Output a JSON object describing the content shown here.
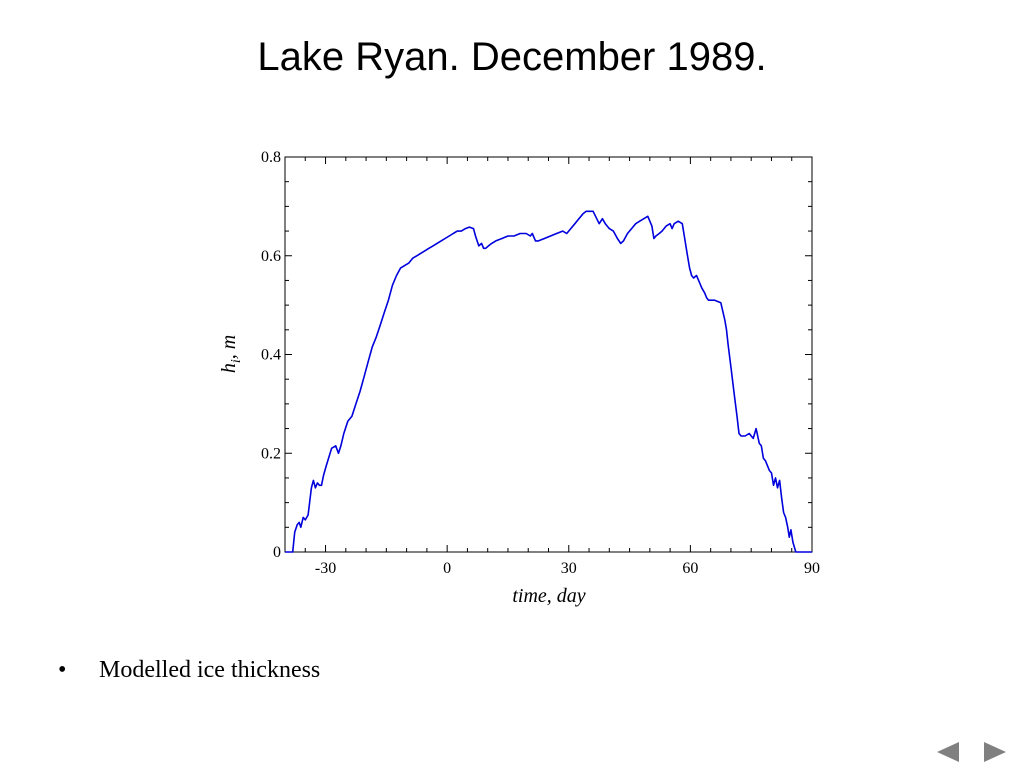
{
  "slide": {
    "title": "Lake Ryan. December 1989.",
    "bullets": [
      {
        "marker": "•",
        "text": "Modelled ice thickness"
      }
    ]
  },
  "navigation": {
    "prev_icon": "triangle-left-icon",
    "next_icon": "triangle-right-icon",
    "icon_color": "#808080"
  },
  "chart_data": {
    "type": "line",
    "xlabel": "time, day",
    "ylabel": {
      "base": "h",
      "subscript": "i",
      "suffix": ", m"
    },
    "xlim": [
      -40,
      90
    ],
    "ylim": [
      0,
      0.8
    ],
    "xticks": [
      -30,
      0,
      30,
      60,
      90
    ],
    "xtick_labels": [
      "-30",
      "0",
      "30",
      "60",
      "90"
    ],
    "yticks": [
      0,
      0.2,
      0.4,
      0.6,
      0.8
    ],
    "ytick_labels": [
      "0",
      "0.2",
      "0.4",
      "0.6",
      "0.8"
    ],
    "grid": false,
    "series": [
      {
        "color": "#0000dd",
        "x": [
          -40,
          -38.1,
          -37.6,
          -37.0,
          -36.5,
          -36.1,
          -35.5,
          -35.0,
          -34.3,
          -33.5,
          -33.0,
          -32.5,
          -32.0,
          -31.5,
          -31.0,
          -30.5,
          -29.8,
          -28.5,
          -27.5,
          -26.8,
          -26.2,
          -25.5,
          -24.5,
          -23.5,
          -22.5,
          -21.5,
          -20.5,
          -19.5,
          -18.5,
          -17.5,
          -16.5,
          -15.5,
          -14.5,
          -13.5,
          -12.5,
          -11.5,
          -10.5,
          -9.5,
          -8.5,
          -7.5,
          -6.5,
          -5.5,
          -4.5,
          -3.5,
          -2.5,
          -1.5,
          -0.5,
          0.5,
          1.5,
          2.5,
          3.5,
          4.5,
          5.5,
          6.5,
          7.0,
          7.8,
          8.5,
          9.0,
          9.5,
          10.2,
          11.0,
          12.0,
          13.5,
          15.0,
          16.5,
          18.0,
          19.5,
          20.5,
          21.0,
          21.8,
          22.5,
          24.0,
          25.5,
          27.0,
          28.5,
          29.5,
          30.5,
          31.5,
          32.5,
          33.5,
          34.3,
          35.0,
          36.0,
          37.5,
          38.3,
          39.0,
          40.0,
          41.0,
          42.0,
          42.8,
          43.5,
          44.5,
          45.5,
          46.5,
          47.5,
          48.5,
          49.5,
          50.5,
          51.0,
          51.5,
          52.3,
          53.0,
          54.0,
          55.0,
          55.5,
          56.0,
          57.0,
          58.0,
          58.5,
          59.3,
          59.8,
          60.3,
          60.8,
          61.5,
          62.3,
          62.8,
          63.5,
          64.0,
          64.5,
          65.3,
          66.0,
          67.5,
          68.5,
          68.9,
          69.3,
          70.0,
          70.8,
          71.5,
          72.0,
          72.5,
          73.5,
          74.5,
          75.5,
          76.2,
          77.0,
          77.5,
          78.0,
          78.5,
          79.0,
          79.5,
          80.0,
          80.5,
          81.0,
          81.5,
          82.0,
          82.5,
          83.0,
          83.5,
          84.0,
          84.4,
          84.8,
          85.3,
          86.0,
          90
        ],
        "y": [
          0,
          0,
          0.04,
          0.055,
          0.06,
          0.05,
          0.07,
          0.065,
          0.075,
          0.13,
          0.145,
          0.13,
          0.14,
          0.135,
          0.135,
          0.155,
          0.175,
          0.21,
          0.215,
          0.2,
          0.215,
          0.24,
          0.265,
          0.275,
          0.3,
          0.325,
          0.355,
          0.385,
          0.415,
          0.435,
          0.46,
          0.485,
          0.51,
          0.54,
          0.56,
          0.575,
          0.58,
          0.585,
          0.595,
          0.6,
          0.605,
          0.61,
          0.615,
          0.62,
          0.625,
          0.63,
          0.635,
          0.64,
          0.645,
          0.65,
          0.65,
          0.655,
          0.658,
          0.655,
          0.64,
          0.62,
          0.625,
          0.615,
          0.615,
          0.62,
          0.625,
          0.63,
          0.635,
          0.64,
          0.64,
          0.645,
          0.645,
          0.64,
          0.645,
          0.63,
          0.63,
          0.635,
          0.64,
          0.645,
          0.65,
          0.645,
          0.655,
          0.665,
          0.675,
          0.685,
          0.69,
          0.69,
          0.69,
          0.665,
          0.675,
          0.665,
          0.655,
          0.65,
          0.635,
          0.625,
          0.63,
          0.645,
          0.655,
          0.665,
          0.67,
          0.675,
          0.68,
          0.66,
          0.635,
          0.64,
          0.645,
          0.65,
          0.66,
          0.665,
          0.655,
          0.665,
          0.67,
          0.665,
          0.64,
          0.6,
          0.575,
          0.56,
          0.555,
          0.56,
          0.545,
          0.535,
          0.525,
          0.515,
          0.51,
          0.51,
          0.51,
          0.505,
          0.47,
          0.45,
          0.42,
          0.375,
          0.32,
          0.275,
          0.24,
          0.235,
          0.235,
          0.24,
          0.23,
          0.25,
          0.22,
          0.215,
          0.19,
          0.185,
          0.175,
          0.165,
          0.16,
          0.135,
          0.15,
          0.13,
          0.145,
          0.11,
          0.08,
          0.07,
          0.05,
          0.03,
          0.045,
          0.02,
          0,
          0
        ]
      }
    ]
  }
}
